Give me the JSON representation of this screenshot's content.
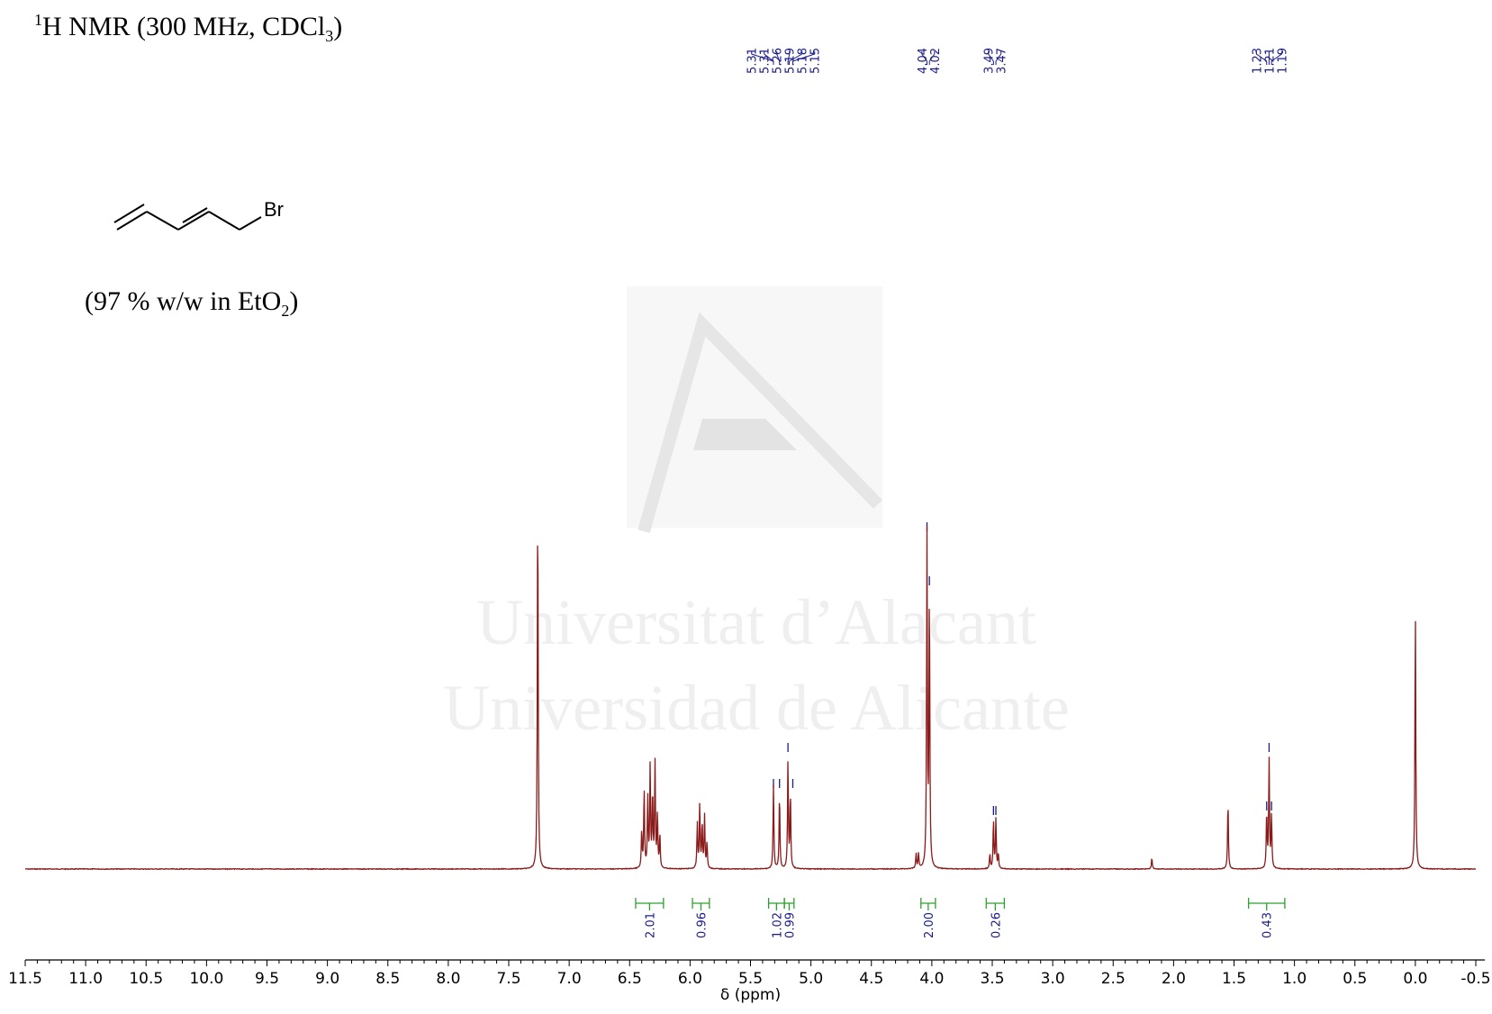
{
  "header": {
    "title_sup": "1",
    "title_main": "H NMR (300 MHz, CDCl",
    "title_sub": "3",
    "title_end": ")",
    "solution_pre": "(97 % w/w in EtO",
    "solution_sub": "2",
    "solution_end": ")",
    "molecule_label": "Br"
  },
  "watermark": {
    "line1": "Universitat d’Alacant",
    "line2": "Universidad de Alicante"
  },
  "chart_data": {
    "type": "line",
    "xlabel": "δ (ppm)",
    "xlim": [
      11.5,
      -0.5
    ],
    "x_reversed": true,
    "x_ticks": [
      "11.5",
      "11.0",
      "10.5",
      "10.0",
      "9.5",
      "9.0",
      "8.5",
      "8.0",
      "7.5",
      "7.0",
      "6.5",
      "6.0",
      "5.5",
      "5.0",
      "4.5",
      "4.0",
      "3.5",
      "3.0",
      "2.5",
      "2.0",
      "1.5",
      "1.0",
      "0.5",
      "0.0",
      "-0.5"
    ],
    "series": [
      {
        "line_color": "#8b1a1a",
        "peaks": [
          {
            "ppm": 7.26,
            "height": 1.0
          },
          {
            "ppm": 6.4,
            "height": 0.1
          },
          {
            "ppm": 6.38,
            "height": 0.21
          },
          {
            "ppm": 6.35,
            "height": 0.19
          },
          {
            "ppm": 6.33,
            "height": 0.27
          },
          {
            "ppm": 6.31,
            "height": 0.2
          },
          {
            "ppm": 6.29,
            "height": 0.28
          },
          {
            "ppm": 6.27,
            "height": 0.14
          },
          {
            "ppm": 6.25,
            "height": 0.09
          },
          {
            "ppm": 5.94,
            "height": 0.12
          },
          {
            "ppm": 5.92,
            "height": 0.17
          },
          {
            "ppm": 5.9,
            "height": 0.12
          },
          {
            "ppm": 5.88,
            "height": 0.14
          },
          {
            "ppm": 5.86,
            "height": 0.07
          },
          {
            "ppm": 5.31,
            "height": 0.22
          },
          {
            "ppm": 5.26,
            "height": 0.2
          },
          {
            "ppm": 5.19,
            "height": 0.29
          },
          {
            "ppm": 5.17,
            "height": 0.2
          },
          {
            "ppm": 4.13,
            "height": 0.04
          },
          {
            "ppm": 4.11,
            "height": 0.04
          },
          {
            "ppm": 4.04,
            "height": 0.88
          },
          {
            "ppm": 4.02,
            "height": 0.73
          },
          {
            "ppm": 3.52,
            "height": 0.04
          },
          {
            "ppm": 3.49,
            "height": 0.13
          },
          {
            "ppm": 3.47,
            "height": 0.13
          },
          {
            "ppm": 3.45,
            "height": 0.04
          },
          {
            "ppm": 2.18,
            "height": 0.03
          },
          {
            "ppm": 1.55,
            "height": 0.18
          },
          {
            "ppm": 1.23,
            "height": 0.15
          },
          {
            "ppm": 1.21,
            "height": 0.29
          },
          {
            "ppm": 1.19,
            "height": 0.14
          },
          {
            "ppm": 0.0,
            "height": 0.69
          }
        ]
      }
    ],
    "peak_labels": [
      {
        "group": [
          "5.31",
          "5.31",
          "5.26",
          "5.19",
          "5.18",
          "5.15"
        ]
      },
      {
        "group": [
          "4.04",
          "4.02"
        ]
      },
      {
        "group": [
          "3.49",
          "3.47"
        ]
      },
      {
        "group": [
          "1.23",
          "1.21",
          "1.19"
        ]
      }
    ],
    "integrals": [
      {
        "from": 6.45,
        "to": 6.22,
        "label": "2.01"
      },
      {
        "from": 5.98,
        "to": 5.84,
        "label": "0.96"
      },
      {
        "from": 5.35,
        "to": 5.22,
        "label": "1.02"
      },
      {
        "from": 5.22,
        "to": 5.14,
        "label": "0.99"
      },
      {
        "from": 4.09,
        "to": 3.97,
        "label": "2.00"
      },
      {
        "from": 3.55,
        "to": 3.4,
        "label": "0.26"
      },
      {
        "from": 1.38,
        "to": 1.08,
        "label": "0.43"
      }
    ],
    "peak_label_color": "#1a1a8c",
    "integral_color": "#2ca02c"
  }
}
